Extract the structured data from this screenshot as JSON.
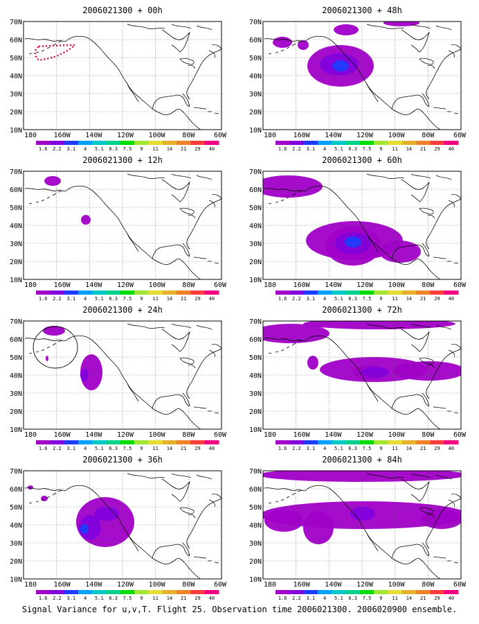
{
  "footer": "Signal Variance for u,v,T. Flight 25. Observation time 2006021300. 2006020900 ensemble.",
  "lat_labels": [
    "10N",
    "20N",
    "30N",
    "40N",
    "50N",
    "60N",
    "70N"
  ],
  "lon_labels": [
    "180",
    "160W",
    "140W",
    "120W",
    "100W",
    "80W",
    "60W"
  ],
  "colorbar": {
    "labels": [
      "1.6",
      "2.2",
      "3.1",
      "4",
      "5.1",
      "6.3",
      "7.5",
      "9",
      "11",
      "14",
      "21",
      "29",
      "40"
    ],
    "colors": [
      "#a000c8",
      "#8200dc",
      "#1e3cff",
      "#00a0ff",
      "#00c8c8",
      "#00d28c",
      "#00dc00",
      "#a0e632",
      "#e6dc32",
      "#e6af2d",
      "#f08228",
      "#fa3c3c",
      "#f00082"
    ]
  },
  "panels": [
    {
      "title": "2006021300 + 00h",
      "hours": 0,
      "note": "observation region outlined (dotted)"
    },
    {
      "title": "2006021300 + 48h",
      "hours": 48
    },
    {
      "title": "2006021300 + 12h",
      "hours": 12
    },
    {
      "title": "2006021300 + 60h",
      "hours": 60
    },
    {
      "title": "2006021300 + 24h",
      "hours": 24,
      "note": "circle marks observation area"
    },
    {
      "title": "2006021300 + 72h",
      "hours": 72
    },
    {
      "title": "2006021300 + 36h",
      "hours": 36
    },
    {
      "title": "2006021300 + 84h",
      "hours": 84
    }
  ],
  "colors": {
    "light_purple": "#a000c8",
    "dark_purple": "#8200dc",
    "blue": "#1e3cff",
    "cyan": "#00a0ff",
    "obs_marker": "#e6004c"
  }
}
